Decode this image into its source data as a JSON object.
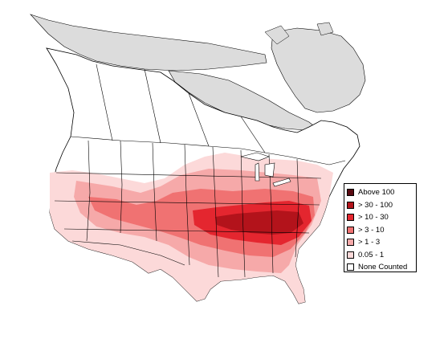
{
  "map": {
    "colors": {
      "outside_range": "#dcdcdc",
      "land": "#ffffff",
      "border": "#000000"
    }
  },
  "legend": {
    "items": [
      {
        "label": "Above 100",
        "color": "#5a0a12"
      },
      {
        "label": "> 30 - 100",
        "color": "#b3131b"
      },
      {
        "label": "> 10 - 30",
        "color": "#e4262f"
      },
      {
        "label": "> 3 - 10",
        "color": "#f07272"
      },
      {
        "label": "> 1 - 3",
        "color": "#f6a9a9"
      },
      {
        "label": "0.05 - 1",
        "color": "#fcd9d9"
      },
      {
        "label": "None Counted",
        "color": "#ffffff"
      }
    ]
  }
}
